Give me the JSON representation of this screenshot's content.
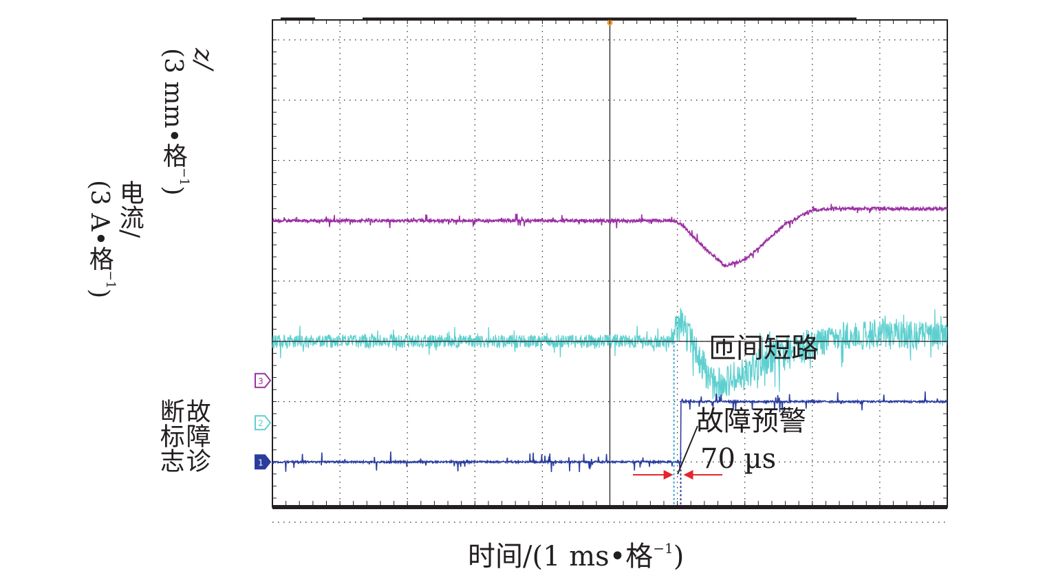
{
  "chart_data": {
    "type": "line",
    "title": "",
    "xlabel": "时间/(1 ms•格",
    "xlabel_sup": "−1",
    "xlabel_tail": ")",
    "x_unit": "ms",
    "x_divisions": 10,
    "y_divisions": 8,
    "xlim": [
      0,
      10
    ],
    "grid": true,
    "channel_markers": [
      "3",
      "2",
      "1"
    ],
    "series": [
      {
        "name": "z/(3 mm•格−1)",
        "label_lines": [
          "z/",
          "(3 mm•格",
          "−1",
          ")"
        ],
        "color": "#9b2fa3",
        "kind": "z",
        "baseline_div": 3.0,
        "x": [
          0,
          5.95,
          6.05,
          6.4,
          6.7,
          7.0,
          7.3,
          7.6,
          8.0,
          8.3,
          10
        ],
        "values_div": [
          0,
          0,
          0.05,
          0.45,
          0.75,
          0.65,
          0.35,
          0.05,
          -0.18,
          -0.2,
          -0.2
        ]
      },
      {
        "name": "电流/(3 A•格−1)",
        "label_lines": [
          "电流/",
          "(3 A•格",
          "−1",
          ")"
        ],
        "color": "#5ecfcf",
        "kind": "current",
        "baseline_div": 5.0,
        "x": [
          0,
          5.9,
          6.05,
          6.3,
          6.5,
          6.9,
          7.5,
          8.5,
          10
        ],
        "values_div": [
          0,
          0,
          -0.3,
          0.2,
          0.7,
          0.6,
          0.2,
          -0.1,
          -0.1
        ]
      },
      {
        "name": "故障诊断标志",
        "label_lines": [
          "故障诊",
          "断标志"
        ],
        "color": "#2a3d9e",
        "kind": "flag",
        "baseline_div": 7.0,
        "x": [
          0,
          6.05,
          6.05,
          10
        ],
        "values_div": [
          0,
          0,
          -1.0,
          -1.0
        ]
      }
    ],
    "annotations": {
      "short_circuit": "匝间短路",
      "warning": "故障预警",
      "interval": "70 µs",
      "warning_time": 5.98,
      "fault_time": 6.05
    }
  }
}
